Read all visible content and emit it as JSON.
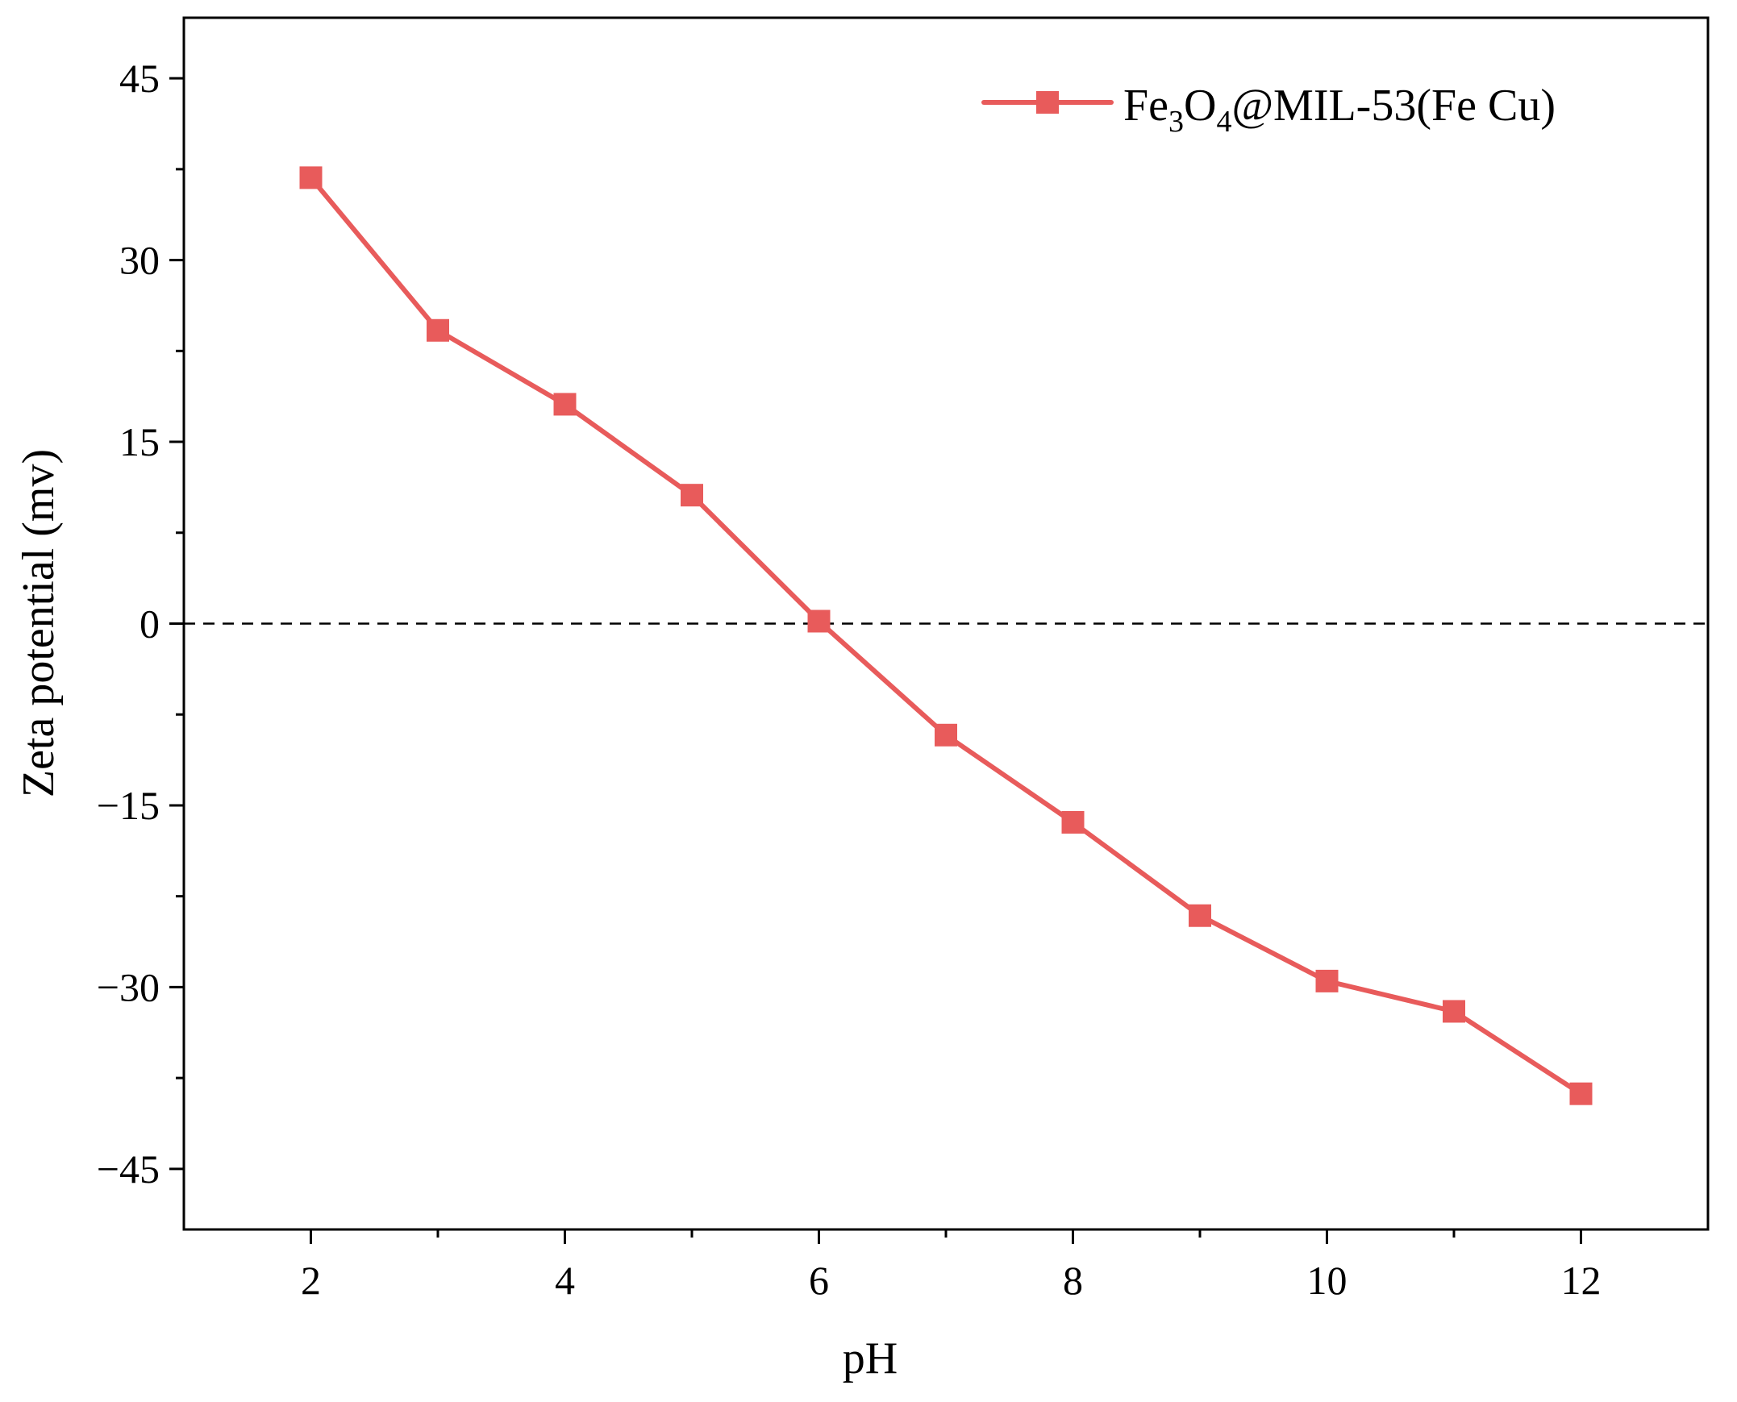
{
  "chart_data": {
    "type": "line",
    "title": "",
    "xlabel": "pH",
    "ylabel": "Zeta potential (mv)",
    "xlim": [
      1,
      13
    ],
    "ylim": [
      -50,
      50
    ],
    "xticks": [
      2,
      4,
      6,
      8,
      10,
      12
    ],
    "xtick_labels": [
      "2",
      "4",
      "6",
      "8",
      "10",
      "12"
    ],
    "yticks": [
      45,
      30,
      15,
      0,
      -15,
      -30,
      -45
    ],
    "ytick_labels": [
      "45",
      "30",
      "15",
      "0",
      "−15",
      "−30",
      "−45"
    ],
    "grid": false,
    "reference_line": {
      "y": 0,
      "style": "dashed",
      "color": "#000000"
    },
    "legend": {
      "position": "top-right",
      "label_parts": {
        "main": "Fe",
        "sub1": "3",
        "mid": "O",
        "sub2": "4",
        "rest": "@MIL-53(Fe Cu)"
      }
    },
    "series": [
      {
        "name": "Fe3O4@MIL-53(Fe Cu)",
        "color": "#e85b5b",
        "marker": "square",
        "x": [
          2,
          3,
          4,
          5,
          6,
          7,
          8,
          9,
          10,
          11,
          12
        ],
        "y": [
          36.8,
          24.2,
          18.1,
          10.6,
          0.2,
          -9.2,
          -16.4,
          -24.1,
          -29.5,
          -32.0,
          -38.8
        ]
      }
    ]
  }
}
